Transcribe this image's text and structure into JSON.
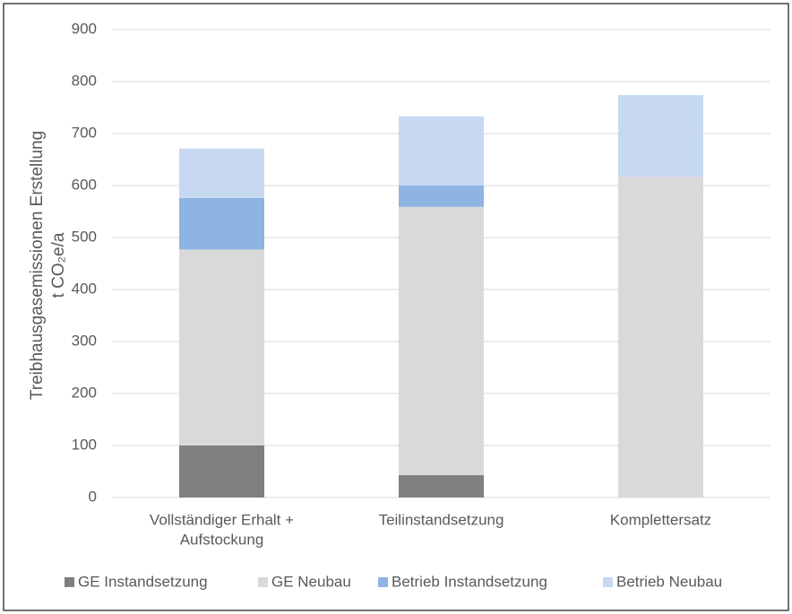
{
  "chart_data": {
    "type": "stacked-bar",
    "y_label": [
      "Treibhausgasemissionen Erstellung",
      "t CO₂e/a"
    ],
    "categories": [
      [
        "Vollständiger Erhalt +",
        "Aufstockung"
      ],
      [
        "Teilinstandsetzung"
      ],
      [
        "Komplettersatz"
      ]
    ],
    "series": [
      {
        "name": "GE Instandsetzung",
        "color": "#7f7f7f",
        "values": [
          100,
          43,
          0
        ]
      },
      {
        "name": "GE Neubau",
        "color": "#d9d9d9",
        "values": [
          377,
          516,
          617
        ]
      },
      {
        "name": "Betrieb Instandsetzung",
        "color": "#8eb4e3",
        "values": [
          99,
          41,
          0
        ]
      },
      {
        "name": "Betrieb Neubau",
        "color": "#c6d9f1",
        "values": [
          95,
          133,
          157
        ]
      }
    ],
    "ylim": [
      0,
      900
    ],
    "yticks": [
      0,
      100,
      200,
      300,
      400,
      500,
      600,
      700,
      800,
      900
    ],
    "grid": true,
    "legend": "bottom"
  }
}
